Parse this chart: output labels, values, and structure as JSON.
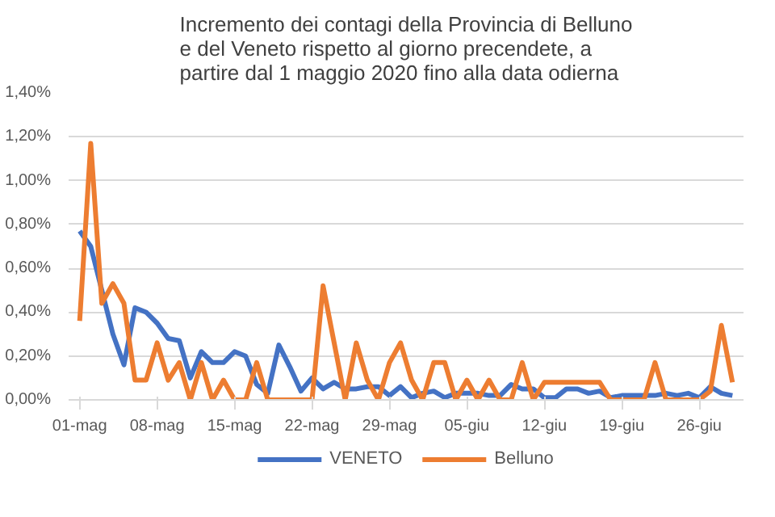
{
  "chart_data": {
    "type": "line",
    "title": "Incremento dei contagi della Provincia di Belluno\ne del  Veneto rispetto al giorno precendete, a\npartire dal 1 maggio 2020 fino alla data odierna",
    "x": [
      "2020-05-01",
      "2020-05-02",
      "2020-05-03",
      "2020-05-04",
      "2020-05-05",
      "2020-05-06",
      "2020-05-07",
      "2020-05-08",
      "2020-05-09",
      "2020-05-10",
      "2020-05-11",
      "2020-05-12",
      "2020-05-13",
      "2020-05-14",
      "2020-05-15",
      "2020-05-16",
      "2020-05-17",
      "2020-05-18",
      "2020-05-19",
      "2020-05-20",
      "2020-05-21",
      "2020-05-22",
      "2020-05-23",
      "2020-05-24",
      "2020-05-25",
      "2020-05-26",
      "2020-05-27",
      "2020-05-28",
      "2020-05-29",
      "2020-05-30",
      "2020-05-31",
      "2020-06-01",
      "2020-06-02",
      "2020-06-03",
      "2020-06-04",
      "2020-06-05",
      "2020-06-06",
      "2020-06-07",
      "2020-06-08",
      "2020-06-09",
      "2020-06-10",
      "2020-06-11",
      "2020-06-12",
      "2020-06-13",
      "2020-06-14",
      "2020-06-15",
      "2020-06-16",
      "2020-06-17",
      "2020-06-18",
      "2020-06-19",
      "2020-06-20",
      "2020-06-21",
      "2020-06-22",
      "2020-06-23",
      "2020-06-24",
      "2020-06-25",
      "2020-06-26",
      "2020-06-27",
      "2020-06-28",
      "2020-06-29"
    ],
    "series": [
      {
        "name": "VENETO",
        "color": "#4472c4",
        "values": [
          0.77,
          0.7,
          0.5,
          0.3,
          0.16,
          0.42,
          0.4,
          0.35,
          0.28,
          0.27,
          0.1,
          0.22,
          0.17,
          0.17,
          0.22,
          0.2,
          0.07,
          0.03,
          0.25,
          0.15,
          0.04,
          0.1,
          0.05,
          0.08,
          0.05,
          0.05,
          0.06,
          0.06,
          0.02,
          0.06,
          0.01,
          0.03,
          0.04,
          0.01,
          0.03,
          0.03,
          0.03,
          0.02,
          0.02,
          0.07,
          0.05,
          0.05,
          0.01,
          0.01,
          0.05,
          0.05,
          0.03,
          0.04,
          0.01,
          0.02,
          0.02,
          0.02,
          0.02,
          0.03,
          0.02,
          0.03,
          0.01,
          0.06,
          0.03,
          0.02
        ]
      },
      {
        "name": "Belluno",
        "color": "#ed7d31",
        "values": [
          0.36,
          1.17,
          0.44,
          0.53,
          0.44,
          0.09,
          0.09,
          0.26,
          0.09,
          0.17,
          0.0,
          0.17,
          0.0,
          0.09,
          0.0,
          0.0,
          0.17,
          0.0,
          0.0,
          0.0,
          0.0,
          0.0,
          0.52,
          0.26,
          0.0,
          0.26,
          0.09,
          0.0,
          0.17,
          0.26,
          0.09,
          0.0,
          0.17,
          0.17,
          0.0,
          0.09,
          0.0,
          0.09,
          0.0,
          0.0,
          0.17,
          0.0,
          0.08,
          0.08,
          0.08,
          0.08,
          0.08,
          0.08,
          0.0,
          0.0,
          0.0,
          0.0,
          0.17,
          0.0,
          0.0,
          0.0,
          0.0,
          0.04,
          0.34,
          0.08
        ]
      }
    ],
    "xlim": [
      "2020-04-30",
      "2020-06-30"
    ],
    "xticks": [
      {
        "value": "2020-05-01",
        "label": "01-mag"
      },
      {
        "value": "2020-05-08",
        "label": "08-mag"
      },
      {
        "value": "2020-05-15",
        "label": "15-mag"
      },
      {
        "value": "2020-05-22",
        "label": "22-mag"
      },
      {
        "value": "2020-05-29",
        "label": "29-mag"
      },
      {
        "value": "2020-06-05",
        "label": "05-giu"
      },
      {
        "value": "2020-06-12",
        "label": "12-giu"
      },
      {
        "value": "2020-06-19",
        "label": "19-giu"
      },
      {
        "value": "2020-06-26",
        "label": "26-giu"
      }
    ],
    "ylim": [
      0,
      1.4
    ],
    "yticks": [
      {
        "value": 0,
        "label": "0,00%"
      },
      {
        "value": 0.2,
        "label": "0,20%"
      },
      {
        "value": 0.4,
        "label": "0,40%"
      },
      {
        "value": 0.6,
        "label": "0,60%"
      },
      {
        "value": 0.8,
        "label": "0,80%"
      },
      {
        "value": 1.0,
        "label": "1,00%"
      },
      {
        "value": 1.2,
        "label": "1,20%"
      },
      {
        "value": 1.4,
        "label": "1,40%"
      }
    ],
    "grid": "y",
    "legend": "bottom",
    "marker": "none",
    "line_style": "solid"
  }
}
